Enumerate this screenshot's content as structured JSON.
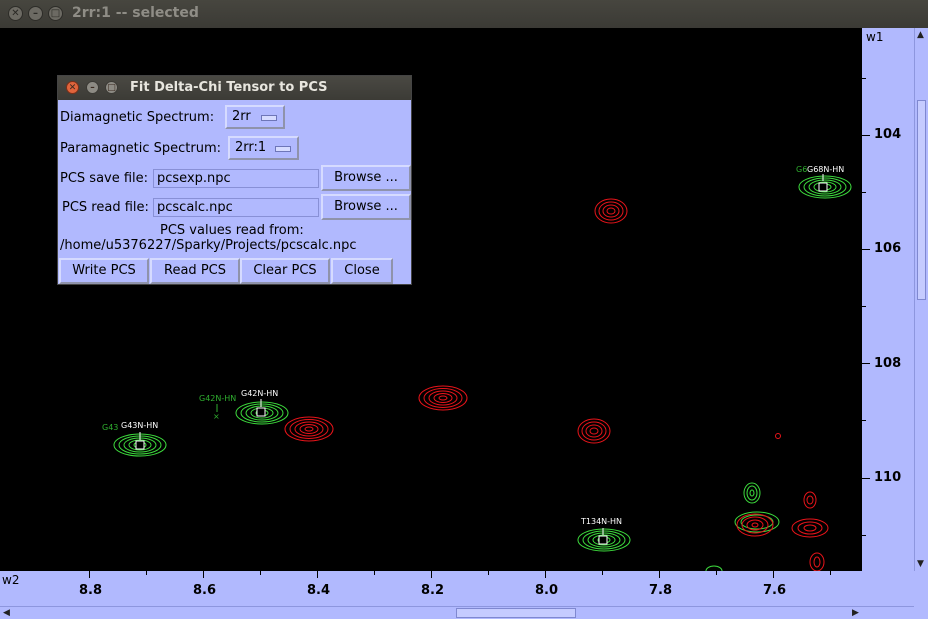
{
  "window": {
    "title": "2rr:1 -- selected",
    "close_glyph": "✕",
    "minimize_glyph": "–",
    "maximize_glyph": "□"
  },
  "axes": {
    "w1_label": "w1",
    "w2_label": "w2",
    "w1_ticks": [
      "104",
      "106",
      "108",
      "110"
    ],
    "w2_ticks": [
      "8.8",
      "8.6",
      "8.4",
      "8.2",
      "8.0",
      "7.8",
      "7.6"
    ]
  },
  "peaks": {
    "g68": "G68N-HN",
    "g68_ghost": "G6",
    "g42": "G42N-HN",
    "g42_ghost": "G42N-HN",
    "g43": "G43N-HN",
    "g43_ghost": "G43",
    "t134": "T134N-HN"
  },
  "dialog": {
    "title": "Fit Delta-Chi Tensor to PCS",
    "diamagnetic_label": "Diamagnetic Spectrum:",
    "diamagnetic_value": "2rr",
    "paramagnetic_label": "Paramagnetic Spectrum:",
    "paramagnetic_value": "2rr:1",
    "save_label": "PCS save file:",
    "save_value": "pcsexp.npc",
    "read_label": "PCS read file:",
    "read_value": "pcscalc.npc",
    "browse_label": "Browse ...",
    "status_line1": "PCS values read from:",
    "status_line2": "/home/u5376227/Sparky/Projects/pcscalc.npc",
    "buttons": {
      "write": "Write PCS",
      "read": "Read PCS",
      "clear": "Clear PCS",
      "close": "Close"
    }
  },
  "colors": {
    "panel": "#b1b9fe",
    "diamagnetic_peak": "#3ddb3d",
    "paramagnetic_peak": "#e8141a"
  }
}
